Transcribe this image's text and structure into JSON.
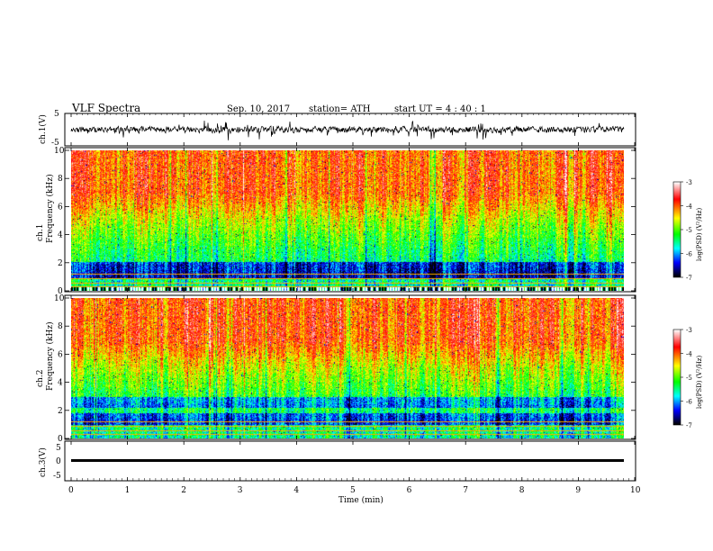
{
  "header": {
    "title": "VLF  Spectra",
    "date": "Sep. 10, 2017",
    "station": "station= ATH",
    "start": "start  UT  =   4  : 40 : 1"
  },
  "chart_data": [
    {
      "type": "line",
      "panel": "ch1-waveform",
      "ylabel": "ch.1(V)",
      "ylim": [
        -5,
        5
      ],
      "y_ticks": [
        "5",
        "-5"
      ],
      "xlim": [
        0,
        10
      ],
      "series": [
        {
          "description_level": 0,
          "values": []
        }
      ]
    },
    {
      "type": "heatmap",
      "panel": "ch1-spectrogram",
      "ylabel": "Frequency  (kHz)",
      "ylabel_channel": "ch.1",
      "ylim": [
        0,
        10
      ],
      "y_ticks": [
        "0",
        "2",
        "4",
        "6",
        "8",
        "10"
      ],
      "xlim": [
        0,
        9.8
      ],
      "colorbar": {
        "label": "log(PSD) (V²/Hz)",
        "range": [
          -7,
          -3
        ],
        "ticks": [
          "-3",
          "-4",
          "-5",
          "-6",
          "-7"
        ]
      }
    },
    {
      "type": "heatmap",
      "panel": "ch2-spectrogram",
      "ylabel": "Frequency  (kHz)",
      "ylabel_channel": "ch.2",
      "ylim": [
        0,
        10
      ],
      "y_ticks": [
        "0",
        "2",
        "4",
        "6",
        "8",
        "10"
      ],
      "xlim": [
        0,
        9.8
      ],
      "colorbar": {
        "label": "log(PSD) (V²/Hz)",
        "range": [
          -7,
          -3
        ],
        "ticks": [
          "-3",
          "-4",
          "-5",
          "-6",
          "-7"
        ]
      }
    },
    {
      "type": "line",
      "panel": "ch3-waveform",
      "ylabel": "ch.3(V)",
      "ylim": [
        -5,
        5
      ],
      "y_ticks": [
        "5",
        "0",
        "-5"
      ],
      "xlabel": "Time  (min)",
      "xlim": [
        0,
        10
      ],
      "x_ticks": [
        "0",
        "1",
        "2",
        "3",
        "4",
        "5",
        "6",
        "7",
        "8",
        "9",
        "10"
      ],
      "series": [
        {
          "level": 0
        }
      ]
    }
  ],
  "colors": {
    "colormap": [
      "#ffffff",
      "#ff0000",
      "#ffff00",
      "#00ff00",
      "#00ffff",
      "#0000ff",
      "#000000"
    ]
  }
}
